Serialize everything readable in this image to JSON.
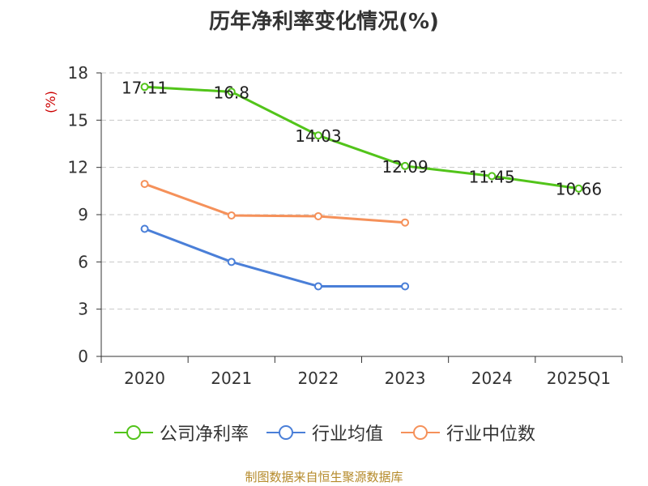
{
  "chart_data": {
    "type": "line",
    "title": "历年净利率变化情况(%)",
    "ylabel": "(%)",
    "xlabel": "",
    "categories": [
      "2020",
      "2021",
      "2022",
      "2023",
      "2024",
      "2025Q1"
    ],
    "ylim": [
      0,
      18
    ],
    "yticks": [
      0,
      3,
      6,
      9,
      12,
      15,
      18
    ],
    "grid": true,
    "legend_position": "bottom",
    "series": [
      {
        "name": "公司净利率",
        "color": "#52c41a",
        "values": [
          17.11,
          16.8,
          14.03,
          12.09,
          11.45,
          10.66
        ],
        "labels": [
          "17.11",
          "16.8",
          "14.03",
          "12.09",
          "11.45",
          "10.66"
        ]
      },
      {
        "name": "行业均值",
        "color": "#4a7fd8",
        "values": [
          8.1,
          6.0,
          4.45,
          4.45,
          null,
          null
        ]
      },
      {
        "name": "行业中位数",
        "color": "#f5915a",
        "values": [
          10.95,
          8.95,
          8.9,
          8.5,
          null,
          null
        ]
      }
    ]
  },
  "source": "制图数据来自恒生聚源数据库"
}
